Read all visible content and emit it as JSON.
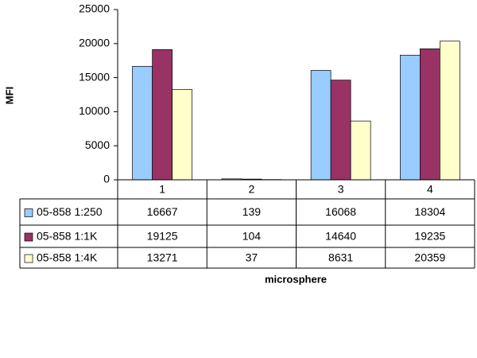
{
  "chart_data": {
    "type": "bar",
    "y_label": "MFI",
    "x_label": "microsphere",
    "categories": [
      "1",
      "2",
      "3",
      "4"
    ],
    "series": [
      {
        "name": "05-858 1:250",
        "color": "#99ccff",
        "values": [
          16667,
          139,
          16068,
          18304
        ]
      },
      {
        "name": "05-858 1:1K",
        "color": "#993366",
        "values": [
          19125,
          104,
          14640,
          19235
        ]
      },
      {
        "name": "05-858 1:4K",
        "color": "#ffffcc",
        "values": [
          13271,
          37,
          8631,
          20359
        ]
      }
    ],
    "ylim": [
      0,
      25000
    ],
    "yticks": [
      0,
      5000,
      10000,
      15000,
      20000,
      25000
    ]
  }
}
